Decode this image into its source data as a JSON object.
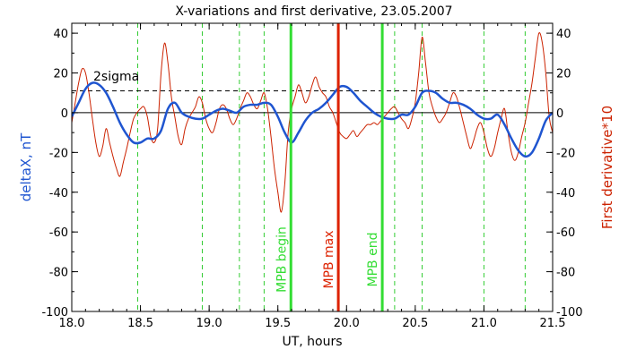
{
  "chart_data": {
    "type": "line",
    "title": "X-variations and first derivative, 23.05.2007",
    "xlabel": "UT, hours",
    "ylabel_left": "deltaX, nT",
    "ylabel_right": "First derivative*10",
    "xlim": [
      18.0,
      21.5
    ],
    "ylim": [
      -100,
      45
    ],
    "xticks": [
      "18.0",
      "18.5",
      "19.0",
      "19.5",
      "20.0",
      "20.5",
      "21.0",
      "21.5"
    ],
    "yticks": [
      "40",
      "20",
      "0",
      "-20",
      "-40",
      "-60",
      "-80",
      "-100"
    ],
    "colors": {
      "deltaX": "#1f55d0",
      "derivative": "#cc2200",
      "mpb_begin_end": "#33dd33",
      "mpb_max": "#dd2200",
      "dashed": "#33cc33"
    },
    "sigma_label": "2sigma",
    "sigma_level": 11,
    "zero_level": 0,
    "markers": [
      {
        "label": "MPB begin",
        "x": 19.595,
        "color": "#33dd33"
      },
      {
        "label": "MPB max",
        "x": 19.94,
        "color": "#dd2200"
      },
      {
        "label": "MPB end",
        "x": 20.26,
        "color": "#33dd33"
      }
    ],
    "dashed_lines_x": [
      18.48,
      18.95,
      19.22,
      19.4,
      20.35,
      20.55,
      21.0,
      21.3
    ],
    "series": [
      {
        "name": "deltaX",
        "x": [
          18.0,
          18.05,
          18.1,
          18.15,
          18.2,
          18.25,
          18.3,
          18.35,
          18.4,
          18.45,
          18.5,
          18.55,
          18.6,
          18.65,
          18.7,
          18.75,
          18.8,
          18.85,
          18.9,
          18.95,
          19.0,
          19.05,
          19.1,
          19.15,
          19.2,
          19.25,
          19.3,
          19.35,
          19.4,
          19.45,
          19.5,
          19.55,
          19.6,
          19.65,
          19.7,
          19.75,
          19.8,
          19.85,
          19.9,
          19.95,
          20.0,
          20.05,
          20.1,
          20.15,
          20.2,
          20.25,
          20.3,
          20.35,
          20.4,
          20.45,
          20.5,
          20.55,
          20.6,
          20.65,
          20.7,
          20.75,
          20.8,
          20.85,
          20.9,
          20.95,
          21.0,
          21.05,
          21.1,
          21.15,
          21.2,
          21.25,
          21.3,
          21.35,
          21.4,
          21.45,
          21.5
        ],
        "values": [
          -2,
          5,
          12,
          15,
          14,
          10,
          3,
          -5,
          -11,
          -15,
          -15,
          -13,
          -13,
          -9,
          2,
          5,
          0,
          -2,
          -3,
          -3,
          -1,
          1,
          2,
          1,
          0,
          3,
          4,
          4,
          5,
          4,
          -2,
          -10,
          -15,
          -10,
          -4,
          0,
          2,
          5,
          9,
          13,
          13,
          10,
          6,
          3,
          0,
          -2,
          -3,
          -3,
          -1,
          -1,
          3,
          10,
          11,
          10,
          7,
          5,
          5,
          4,
          2,
          -1,
          -3,
          -3,
          -1,
          -6,
          -13,
          -19,
          -22,
          -20,
          -13,
          -4,
          0
        ]
      },
      {
        "name": "First derivative*10",
        "x": [
          18.0,
          18.025,
          18.05,
          18.075,
          18.1,
          18.125,
          18.15,
          18.175,
          18.2,
          18.225,
          18.25,
          18.275,
          18.3,
          18.325,
          18.35,
          18.375,
          18.4,
          18.425,
          18.45,
          18.475,
          18.5,
          18.525,
          18.55,
          18.575,
          18.6,
          18.625,
          18.65,
          18.675,
          18.7,
          18.725,
          18.75,
          18.775,
          18.8,
          18.825,
          18.85,
          18.875,
          18.9,
          18.925,
          18.95,
          18.975,
          19.0,
          19.025,
          19.05,
          19.075,
          19.1,
          19.125,
          19.15,
          19.175,
          19.2,
          19.225,
          19.25,
          19.275,
          19.3,
          19.325,
          19.35,
          19.375,
          19.4,
          19.425,
          19.45,
          19.475,
          19.5,
          19.525,
          19.55,
          19.575,
          19.6,
          19.625,
          19.65,
          19.675,
          19.7,
          19.725,
          19.75,
          19.775,
          19.8,
          19.825,
          19.85,
          19.875,
          19.9,
          19.925,
          19.95,
          19.975,
          20.0,
          20.025,
          20.05,
          20.075,
          20.1,
          20.125,
          20.15,
          20.175,
          20.2,
          20.225,
          20.25,
          20.275,
          20.3,
          20.325,
          20.35,
          20.375,
          20.4,
          20.425,
          20.45,
          20.475,
          20.5,
          20.525,
          20.55,
          20.575,
          20.6,
          20.625,
          20.65,
          20.675,
          20.7,
          20.725,
          20.75,
          20.775,
          20.8,
          20.825,
          20.85,
          20.875,
          20.9,
          20.925,
          20.95,
          20.975,
          21.0,
          21.025,
          21.05,
          21.075,
          21.1,
          21.125,
          21.15,
          21.175,
          21.2,
          21.225,
          21.25,
          21.275,
          21.3,
          21.325,
          21.35,
          21.375,
          21.4,
          21.425,
          21.45,
          21.475,
          21.5
        ],
        "values": [
          -5,
          5,
          15,
          22,
          20,
          10,
          -3,
          -15,
          -22,
          -17,
          -8,
          -15,
          -22,
          -28,
          -32,
          -25,
          -18,
          -10,
          -3,
          0,
          2,
          3,
          -2,
          -12,
          -15,
          -8,
          20,
          35,
          25,
          8,
          -2,
          -12,
          -16,
          -8,
          -3,
          0,
          3,
          8,
          5,
          -3,
          -8,
          -10,
          -5,
          2,
          4,
          2,
          -3,
          -6,
          -3,
          2,
          6,
          10,
          8,
          4,
          2,
          6,
          10,
          2,
          -12,
          -28,
          -40,
          -50,
          -36,
          -10,
          2,
          8,
          14,
          10,
          5,
          8,
          14,
          18,
          13,
          10,
          8,
          3,
          0,
          -5,
          -10,
          -12,
          -13,
          -11,
          -9,
          -12,
          -10,
          -8,
          -6,
          -6,
          -5,
          -6,
          -4,
          -2,
          0,
          2,
          3,
          0,
          -3,
          -5,
          -8,
          -3,
          5,
          20,
          38,
          25,
          10,
          3,
          -2,
          -5,
          -3,
          0,
          5,
          10,
          8,
          2,
          -5,
          -12,
          -18,
          -14,
          -8,
          -5,
          -10,
          -18,
          -22,
          -18,
          -10,
          -3,
          2,
          -10,
          -20,
          -24,
          -20,
          -12,
          -5,
          5,
          15,
          28,
          40,
          35,
          20,
          -2,
          -10
        ]
      }
    ]
  }
}
